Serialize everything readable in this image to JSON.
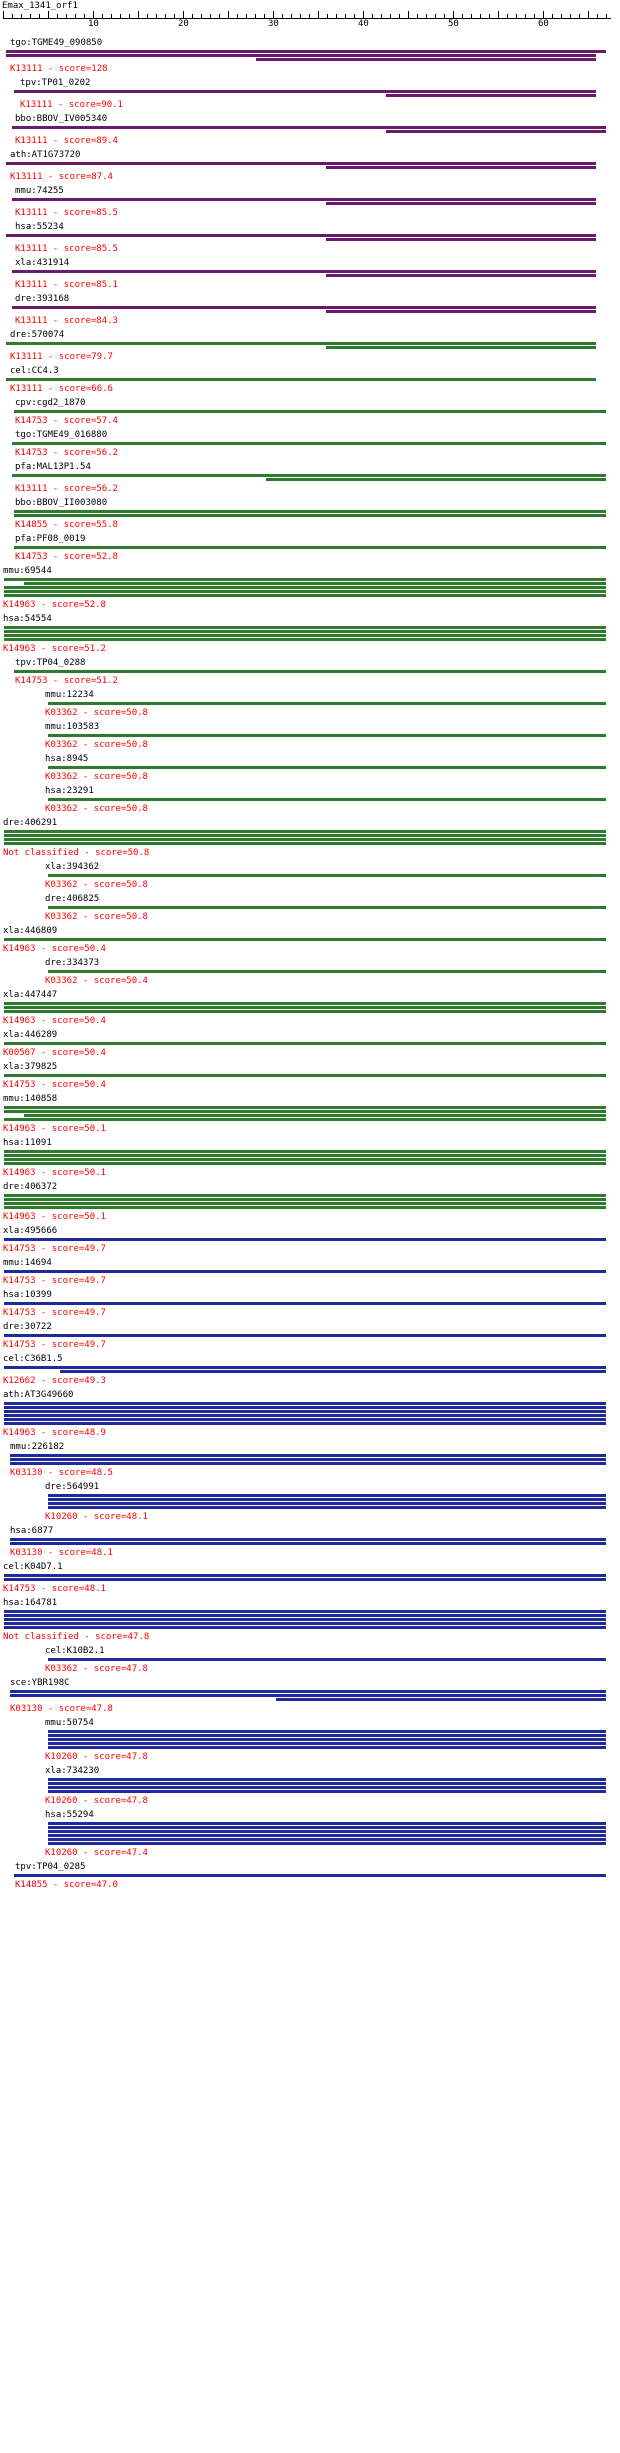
{
  "title": "Emax_1341_orf1",
  "ruler": {
    "ticks": [
      10,
      20,
      30,
      40,
      50,
      60
    ]
  },
  "colors": {
    "purple": "#6b1a6b",
    "green": "#2f7a2f",
    "blue": "#1f2a9a",
    "score_text": "#ff0000"
  },
  "hits": [
    {
      "name": "tgo:TGME49_090850",
      "score": "K13111 - score=128",
      "color": "purple"
    },
    {
      "name": "tpv:TP01_0202",
      "score": "K13111 - score=90.1",
      "color": "purple"
    },
    {
      "name": "bbo:BBOV_IV005340",
      "score": "K13111 - score=89.4",
      "color": "purple"
    },
    {
      "name": "ath:AT1G73720",
      "score": "K13111 - score=87.4",
      "color": "purple"
    },
    {
      "name": "mmu:74255",
      "score": "K13111 - score=85.5",
      "color": "purple"
    },
    {
      "name": "hsa:55234",
      "score": "K13111 - score=85.5",
      "color": "purple"
    },
    {
      "name": "xla:431914",
      "score": "K13111 - score=85.1",
      "color": "purple"
    },
    {
      "name": "dre:393168",
      "score": "K13111 - score=84.3",
      "color": "purple"
    },
    {
      "name": "dre:570074",
      "score": "K13111 - score=79.7",
      "color": "green"
    },
    {
      "name": "cel:CC4.3",
      "score": "K13111 - score=66.6",
      "color": "green"
    },
    {
      "name": "cpv:cgd2_1870",
      "score": "K14753 - score=57.4",
      "color": "green"
    },
    {
      "name": "tgo:TGME49_016880",
      "score": "K14753 - score=56.2",
      "color": "green"
    },
    {
      "name": "pfa:MAL13P1.54",
      "score": "K13111 - score=56.2",
      "color": "green"
    },
    {
      "name": "bbo:BBOV_II003080",
      "score": "K14855 - score=55.8",
      "color": "green"
    },
    {
      "name": "pfa:PF08_0019",
      "score": "K14753 - score=52.8",
      "color": "green"
    },
    {
      "name": "mmu:69544",
      "score": "K14963 - score=52.8",
      "color": "green"
    },
    {
      "name": "hsa:54554",
      "score": "K14963 - score=51.2",
      "color": "green"
    },
    {
      "name": "tpv:TP04_0288",
      "score": "K14753 - score=51.2",
      "color": "green"
    },
    {
      "name": "mmu:12234",
      "score": "K03362 - score=50.8",
      "color": "green"
    },
    {
      "name": "mmu:103583",
      "score": "K03362 - score=50.8",
      "color": "green"
    },
    {
      "name": "hsa:8945",
      "score": "K03362 - score=50.8",
      "color": "green"
    },
    {
      "name": "hsa:23291",
      "score": "K03362 - score=50.8",
      "color": "green"
    },
    {
      "name": "dre:406291",
      "score": "Not classified - score=50.8",
      "color": "green"
    },
    {
      "name": "xla:394362",
      "score": "K03362 - score=50.8",
      "color": "green"
    },
    {
      "name": "dre:406825",
      "score": "K03362 - score=50.8",
      "color": "green"
    },
    {
      "name": "xla:446809",
      "score": "K14963 - score=50.4",
      "color": "green"
    },
    {
      "name": "dre:334373",
      "score": "K03362 - score=50.4",
      "color": "green"
    },
    {
      "name": "xla:447447",
      "score": "K14963 - score=50.4",
      "color": "green"
    },
    {
      "name": "xla:446289",
      "score": "K00567 - score=50.4",
      "color": "green"
    },
    {
      "name": "xla:379825",
      "score": "K14753 - score=50.4",
      "color": "green"
    },
    {
      "name": "mmu:140858",
      "score": "K14963 - score=50.1",
      "color": "green"
    },
    {
      "name": "hsa:11091",
      "score": "K14963 - score=50.1",
      "color": "green"
    },
    {
      "name": "dre:406372",
      "score": "K14963 - score=50.1",
      "color": "green"
    },
    {
      "name": "xla:495666",
      "score": "K14753 - score=49.7",
      "color": "blue"
    },
    {
      "name": "mmu:14694",
      "score": "K14753 - score=49.7",
      "color": "blue"
    },
    {
      "name": "hsa:10399",
      "score": "K14753 - score=49.7",
      "color": "blue"
    },
    {
      "name": "dre:30722",
      "score": "K14753 - score=49.7",
      "color": "blue"
    },
    {
      "name": "cel:C36B1.5",
      "score": "K12662 - score=49.3",
      "color": "blue"
    },
    {
      "name": "ath:AT3G49660",
      "score": "K14963 - score=48.9",
      "color": "blue"
    },
    {
      "name": "mmu:226182",
      "score": "K03130 - score=48.5",
      "color": "blue"
    },
    {
      "name": "dre:564991",
      "score": "K10260 - score=48.1",
      "color": "blue"
    },
    {
      "name": "hsa:6877",
      "score": "K03130 - score=48.1",
      "color": "blue"
    },
    {
      "name": "cel:K04D7.1",
      "score": "K14753 - score=48.1",
      "color": "blue"
    },
    {
      "name": "hsa:164781",
      "score": "Not classified - score=47.8",
      "color": "blue"
    },
    {
      "name": "cel:K10B2.1",
      "score": "K03362 - score=47.8",
      "color": "blue"
    },
    {
      "name": "sce:YBR198C",
      "score": "K03130 - score=47.8",
      "color": "blue"
    },
    {
      "name": "mmu:50754",
      "score": "K10260 - score=47.8",
      "color": "blue"
    },
    {
      "name": "xla:734230",
      "score": "K10260 - score=47.8",
      "color": "blue"
    },
    {
      "name": "hsa:55294",
      "score": "K10260 - score=47.4",
      "color": "blue"
    },
    {
      "name": "tpv:TP04_0285",
      "score": "K14855 - score=47.0",
      "color": "blue"
    }
  ]
}
